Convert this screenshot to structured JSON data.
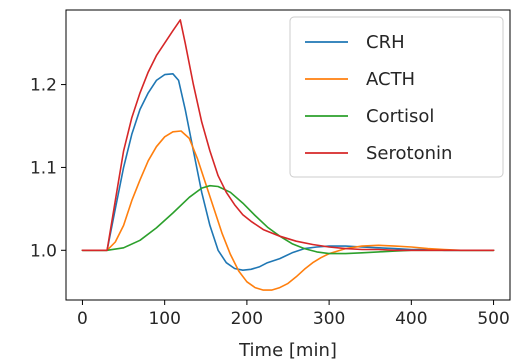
{
  "chart_data": {
    "type": "line",
    "title": "",
    "xlabel": "Time [min]",
    "ylabel": "",
    "xlim": [
      -20,
      520
    ],
    "ylim": [
      0.94,
      1.29
    ],
    "x_ticks": [
      0,
      100,
      200,
      300,
      400,
      500
    ],
    "y_ticks": [
      1.0,
      1.1,
      1.2
    ],
    "x_tick_labels": [
      "0",
      "100",
      "200",
      "300",
      "400",
      "500"
    ],
    "y_tick_labels": [
      "1.0",
      "1.1",
      "1.2"
    ],
    "grid": false,
    "legend_position": "top-right",
    "series": [
      {
        "name": "CRH",
        "color": "#1f77b4",
        "x": [
          0,
          30,
          40,
          50,
          60,
          70,
          80,
          90,
          100,
          110,
          117,
          125,
          135,
          145,
          155,
          165,
          175,
          185,
          195,
          205,
          215,
          225,
          240,
          255,
          270,
          285,
          300,
          320,
          340,
          360,
          380,
          400,
          420,
          440,
          460,
          480,
          500
        ],
        "y": [
          1.0,
          1.0,
          1.05,
          1.1,
          1.14,
          1.17,
          1.19,
          1.205,
          1.212,
          1.213,
          1.205,
          1.17,
          1.12,
          1.07,
          1.03,
          1.0,
          0.985,
          0.978,
          0.976,
          0.977,
          0.98,
          0.985,
          0.99,
          0.997,
          1.002,
          1.004,
          1.005,
          1.005,
          1.004,
          1.003,
          1.002,
          1.001,
          1.001,
          1.0,
          1.0,
          1.0,
          1.0
        ]
      },
      {
        "name": "ACTH",
        "color": "#ff7f0e",
        "x": [
          0,
          30,
          40,
          50,
          60,
          70,
          80,
          90,
          100,
          110,
          120,
          130,
          140,
          150,
          160,
          170,
          180,
          190,
          200,
          210,
          220,
          230,
          240,
          250,
          260,
          270,
          280,
          290,
          300,
          320,
          340,
          360,
          380,
          400,
          420,
          440,
          460,
          480,
          500
        ],
        "y": [
          1.0,
          1.0,
          1.01,
          1.03,
          1.06,
          1.085,
          1.108,
          1.125,
          1.137,
          1.143,
          1.144,
          1.135,
          1.11,
          1.08,
          1.05,
          1.02,
          0.995,
          0.975,
          0.962,
          0.955,
          0.952,
          0.952,
          0.955,
          0.96,
          0.968,
          0.977,
          0.985,
          0.991,
          0.996,
          1.002,
          1.005,
          1.006,
          1.005,
          1.004,
          1.002,
          1.001,
          1.0,
          1.0,
          1.0
        ]
      },
      {
        "name": "Cortisol",
        "color": "#2ca02c",
        "x": [
          0,
          30,
          50,
          70,
          90,
          110,
          130,
          145,
          155,
          165,
          180,
          195,
          210,
          225,
          240,
          255,
          270,
          285,
          300,
          320,
          340,
          360,
          380,
          400,
          430,
          460,
          500
        ],
        "y": [
          1.0,
          1.0,
          1.003,
          1.012,
          1.027,
          1.045,
          1.064,
          1.075,
          1.078,
          1.077,
          1.07,
          1.057,
          1.042,
          1.028,
          1.017,
          1.008,
          1.002,
          0.998,
          0.996,
          0.996,
          0.997,
          0.998,
          0.999,
          1.0,
          1.0,
          1.0,
          1.0
        ]
      },
      {
        "name": "Serotonin",
        "color": "#d62728",
        "x": [
          0,
          30,
          40,
          50,
          60,
          70,
          80,
          90,
          100,
          110,
          119,
          125,
          135,
          145,
          155,
          165,
          175,
          185,
          195,
          205,
          220,
          240,
          260,
          280,
          300,
          320,
          340,
          360,
          380,
          400,
          420,
          440,
          460,
          480,
          500
        ],
        "y": [
          1.0,
          1.0,
          1.06,
          1.12,
          1.16,
          1.19,
          1.215,
          1.235,
          1.25,
          1.265,
          1.278,
          1.25,
          1.2,
          1.155,
          1.12,
          1.09,
          1.07,
          1.055,
          1.043,
          1.035,
          1.025,
          1.017,
          1.011,
          1.007,
          1.004,
          1.002,
          1.001,
          1.001,
          1.0,
          1.0,
          1.0,
          1.0,
          1.0,
          1.0,
          1.0
        ]
      }
    ]
  }
}
